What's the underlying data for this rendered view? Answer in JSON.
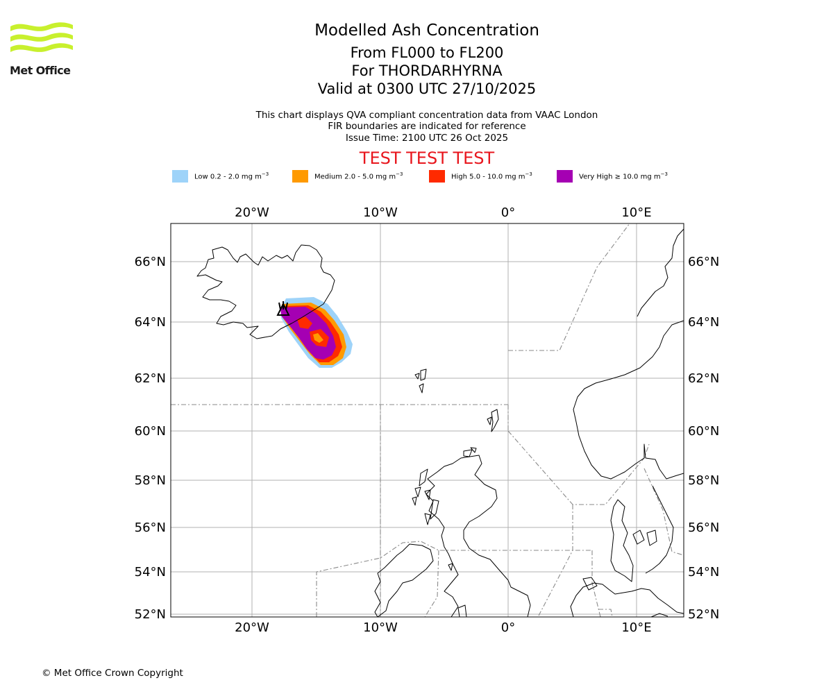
{
  "header": {
    "logo_text": "Met Office",
    "title": "Modelled Ash Concentration",
    "line2": "From FL000 to FL200",
    "line3": "For THORDARHYRNA",
    "line4": "Valid at 0300 UTC 27/10/2025",
    "sub1": "This chart displays QVA compliant concentration data from VAAC London",
    "sub2": "FIR boundaries are indicated for reference",
    "sub3": "Issue Time: 2100 UTC 26 Oct 2025",
    "test_banner": "TEST TEST TEST"
  },
  "legend": [
    {
      "label": "Low 0.2 - 2.0 mg m",
      "unit_exp": "−3",
      "color": "#9ed3f9"
    },
    {
      "label": "Medium 2.0 - 5.0 mg m",
      "unit_exp": "−3",
      "color": "#ff9a00"
    },
    {
      "label": "High 5.0 - 10.0 mg m",
      "unit_exp": "−3",
      "color": "#ff2a00"
    },
    {
      "label": "Very High  ≥  10.0 mg m",
      "unit_exp": "−3",
      "color": "#a500b3"
    }
  ],
  "map": {
    "lon_labels": [
      "20°W",
      "10°W",
      "0°",
      "10°E"
    ],
    "lat_labels": [
      "66°N",
      "64°N",
      "62°N",
      "60°N",
      "58°N",
      "56°N",
      "54°N",
      "52°N"
    ],
    "lon_values": [
      -20,
      -10,
      0,
      10
    ],
    "lat_values": [
      66,
      64,
      62,
      60,
      58,
      56,
      54,
      52
    ],
    "gridlines": true,
    "volcano_marker": "volcano-triangle-icon"
  },
  "footer": {
    "copyright": "© Met Office Crown Copyright"
  }
}
